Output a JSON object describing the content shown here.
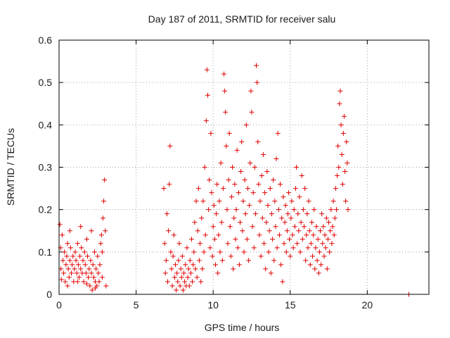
{
  "chart_data": {
    "type": "scatter",
    "title": "Day 187 of 2011, SRMTID for receiver salu",
    "xlabel": "GPS time / hours",
    "ylabel": "SRMTID / TECUs",
    "xlim": [
      0,
      24
    ],
    "ylim": [
      0,
      0.6
    ],
    "xticks": [
      "0",
      "5",
      "10",
      "15",
      "20"
    ],
    "xtick_values": [
      0,
      5,
      10,
      15,
      20
    ],
    "yticks": [
      "0",
      "0.1",
      "0.2",
      "0.3",
      "0.4",
      "0.5",
      "0.6"
    ],
    "ytick_values": [
      0,
      0.1,
      0.2,
      0.3,
      0.4,
      0.5,
      0.6
    ],
    "grid": true,
    "marker": "plus",
    "color": "#e00000",
    "series": [
      {
        "points": [
          [
            0.05,
            0.165
          ],
          [
            0.1,
            0.11
          ],
          [
            0.12,
            0.06
          ],
          [
            0.2,
            0.14
          ],
          [
            0.25,
            0.08
          ],
          [
            0.3,
            0.05
          ],
          [
            0.35,
            0.1
          ],
          [
            0.4,
            0.03
          ],
          [
            0.45,
            0.07
          ],
          [
            0.5,
            0.09
          ],
          [
            0.55,
            0.12
          ],
          [
            0.6,
            0.06
          ],
          [
            0.65,
            0.04
          ],
          [
            0.7,
            0.08
          ],
          [
            0.75,
            0.11
          ],
          [
            0.8,
            0.05
          ],
          [
            0.85,
            0.07
          ],
          [
            0.9,
            0.09
          ],
          [
            0.95,
            0.03
          ],
          [
            1.0,
            0.06
          ],
          [
            1.05,
            0.1
          ],
          [
            1.1,
            0.08
          ],
          [
            1.15,
            0.05
          ],
          [
            1.2,
            0.12
          ],
          [
            1.25,
            0.07
          ],
          [
            1.3,
            0.04
          ],
          [
            1.35,
            0.09
          ],
          [
            1.4,
            0.06
          ],
          [
            1.45,
            0.11
          ],
          [
            1.5,
            0.05
          ],
          [
            1.55,
            0.08
          ],
          [
            1.6,
            0.03
          ],
          [
            1.65,
            0.1
          ],
          [
            1.7,
            0.07
          ],
          [
            1.75,
            0.05
          ],
          [
            1.8,
            0.13
          ],
          [
            1.85,
            0.09
          ],
          [
            1.9,
            0.04
          ],
          [
            1.95,
            0.06
          ],
          [
            2.0,
            0.02
          ],
          [
            2.05,
            0.08
          ],
          [
            2.1,
            0.05
          ],
          [
            2.15,
            0.01
          ],
          [
            2.2,
            0.07
          ],
          [
            2.25,
            0.04
          ],
          [
            2.3,
            0.1
          ],
          [
            2.35,
            0.03
          ],
          [
            2.4,
            0.06
          ],
          [
            2.45,
            0.02
          ],
          [
            2.5,
            0.09
          ],
          [
            2.55,
            0.05
          ],
          [
            2.6,
            0.03
          ],
          [
            2.65,
            0.07
          ],
          [
            2.7,
            0.12
          ],
          [
            2.75,
            0.14
          ],
          [
            2.8,
            0.1
          ],
          [
            2.85,
            0.18
          ],
          [
            2.9,
            0.22
          ],
          [
            2.95,
            0.27
          ],
          [
            3.0,
            0.15
          ],
          [
            3.05,
            0.02
          ],
          [
            0.15,
            0.035
          ],
          [
            0.55,
            0.02
          ],
          [
            1.2,
            0.03
          ],
          [
            1.8,
            0.025
          ],
          [
            2.35,
            0.015
          ],
          [
            2.8,
            0.04
          ],
          [
            0.7,
            0.15
          ],
          [
            1.4,
            0.16
          ],
          [
            2.1,
            0.15
          ],
          [
            6.8,
            0.25
          ],
          [
            6.85,
            0.12
          ],
          [
            6.9,
            0.05
          ],
          [
            6.95,
            0.08
          ],
          [
            7.0,
            0.19
          ],
          [
            7.05,
            0.03
          ],
          [
            7.1,
            0.15
          ],
          [
            7.15,
            0.26
          ],
          [
            7.2,
            0.35
          ],
          [
            7.25,
            0.1
          ],
          [
            7.3,
            0.06
          ],
          [
            7.35,
            0.02
          ],
          [
            7.4,
            0.09
          ],
          [
            7.45,
            0.14
          ],
          [
            7.5,
            0.04
          ],
          [
            7.55,
            0.07
          ],
          [
            7.6,
            0.01
          ],
          [
            7.65,
            0.05
          ],
          [
            7.7,
            0.03
          ],
          [
            7.75,
            0.08
          ],
          [
            7.8,
            0.12
          ],
          [
            7.85,
            0.02
          ],
          [
            7.9,
            0.06
          ],
          [
            7.95,
            0.04
          ],
          [
            8.0,
            0.09
          ],
          [
            8.05,
            0.01
          ],
          [
            8.1,
            0.05
          ],
          [
            8.15,
            0.03
          ],
          [
            8.2,
            0.07
          ],
          [
            8.25,
            0.02
          ],
          [
            8.3,
            0.11
          ],
          [
            8.35,
            0.04
          ],
          [
            8.4,
            0.06
          ],
          [
            8.45,
            0.02
          ],
          [
            8.5,
            0.08
          ],
          [
            8.55,
            0.05
          ],
          [
            8.6,
            0.13
          ],
          [
            8.65,
            0.03
          ],
          [
            8.7,
            0.07
          ],
          [
            8.75,
            0.1
          ],
          [
            8.8,
            0.17
          ],
          [
            8.85,
            0.06
          ],
          [
            8.9,
            0.22
          ],
          [
            8.95,
            0.04
          ],
          [
            9.0,
            0.15
          ],
          [
            9.05,
            0.25
          ],
          [
            9.1,
            0.08
          ],
          [
            9.15,
            0.12
          ],
          [
            9.2,
            0.03
          ],
          [
            9.25,
            0.18
          ],
          [
            9.3,
            0.06
          ],
          [
            9.35,
            0.22
          ],
          [
            9.4,
            0.1
          ],
          [
            9.45,
            0.3
          ],
          [
            9.5,
            0.14
          ],
          [
            9.55,
            0.41
          ],
          [
            9.6,
            0.53
          ],
          [
            9.65,
            0.47
          ],
          [
            9.7,
            0.2
          ],
          [
            9.75,
            0.27
          ],
          [
            9.8,
            0.11
          ],
          [
            9.85,
            0.38
          ],
          [
            9.9,
            0.24
          ],
          [
            9.95,
            0.09
          ],
          [
            10.0,
            0.16
          ],
          [
            10.05,
            0.21
          ],
          [
            10.1,
            0.13
          ],
          [
            10.15,
            0.07
          ],
          [
            10.2,
            0.19
          ],
          [
            10.25,
            0.26
          ],
          [
            10.3,
            0.05
          ],
          [
            10.35,
            0.14
          ],
          [
            10.4,
            0.22
          ],
          [
            10.45,
            0.1
          ],
          [
            10.5,
            0.31
          ],
          [
            10.55,
            0.17
          ],
          [
            10.6,
            0.08
          ],
          [
            10.65,
            0.25
          ],
          [
            10.7,
            0.52
          ],
          [
            10.75,
            0.48
          ],
          [
            10.8,
            0.43
          ],
          [
            10.85,
            0.35
          ],
          [
            10.9,
            0.2
          ],
          [
            10.95,
            0.12
          ],
          [
            11.0,
            0.27
          ],
          [
            11.05,
            0.38
          ],
          [
            11.1,
            0.16
          ],
          [
            11.15,
            0.09
          ],
          [
            11.2,
            0.23
          ],
          [
            11.25,
            0.3
          ],
          [
            11.3,
            0.06
          ],
          [
            11.35,
            0.18
          ],
          [
            11.4,
            0.26
          ],
          [
            11.45,
            0.13
          ],
          [
            11.5,
            0.2
          ],
          [
            11.55,
            0.34
          ],
          [
            11.6,
            0.11
          ],
          [
            11.65,
            0.24
          ],
          [
            11.7,
            0.07
          ],
          [
            11.75,
            0.17
          ],
          [
            11.8,
            0.29
          ],
          [
            11.85,
            0.36
          ],
          [
            11.9,
            0.15
          ],
          [
            11.95,
            0.22
          ],
          [
            12.0,
            0.1
          ],
          [
            12.05,
            0.27
          ],
          [
            12.1,
            0.19
          ],
          [
            12.15,
            0.4
          ],
          [
            12.2,
            0.13
          ],
          [
            12.25,
            0.25
          ],
          [
            12.3,
            0.08
          ],
          [
            12.35,
            0.21
          ],
          [
            12.4,
            0.31
          ],
          [
            12.45,
            0.48
          ],
          [
            12.5,
            0.43
          ],
          [
            12.55,
            0.16
          ],
          [
            12.6,
            0.24
          ],
          [
            12.65,
            0.11
          ],
          [
            12.7,
            0.3
          ],
          [
            12.75,
            0.19
          ],
          [
            12.8,
            0.54
          ],
          [
            12.85,
            0.5
          ],
          [
            12.9,
            0.36
          ],
          [
            12.95,
            0.26
          ],
          [
            13.0,
            0.14
          ],
          [
            13.05,
            0.22
          ],
          [
            13.1,
            0.09
          ],
          [
            13.15,
            0.28
          ],
          [
            13.2,
            0.18
          ],
          [
            13.25,
            0.33
          ],
          [
            13.3,
            0.12
          ],
          [
            13.35,
            0.24
          ],
          [
            13.4,
            0.06
          ],
          [
            13.45,
            0.17
          ],
          [
            13.5,
            0.29
          ],
          [
            13.55,
            0.21
          ],
          [
            13.6,
            0.1
          ],
          [
            13.65,
            0.15
          ],
          [
            13.7,
            0.25
          ],
          [
            13.75,
            0.05
          ],
          [
            13.8,
            0.19
          ],
          [
            13.85,
            0.13
          ],
          [
            13.9,
            0.27
          ],
          [
            13.95,
            0.08
          ],
          [
            14.0,
            0.22
          ],
          [
            14.05,
            0.16
          ],
          [
            14.1,
            0.32
          ],
          [
            14.15,
            0.11
          ],
          [
            14.2,
            0.38
          ],
          [
            14.25,
            0.2
          ],
          [
            14.3,
            0.14
          ],
          [
            14.35,
            0.26
          ],
          [
            14.4,
            0.07
          ],
          [
            14.45,
            0.18
          ],
          [
            14.5,
            0.03
          ],
          [
            14.55,
            0.23
          ],
          [
            14.6,
            0.12
          ],
          [
            14.65,
            0.17
          ],
          [
            14.7,
            0.21
          ],
          [
            14.75,
            0.1
          ],
          [
            14.8,
            0.15
          ],
          [
            14.85,
            0.19
          ],
          [
            14.9,
            0.24
          ],
          [
            14.95,
            0.13
          ],
          [
            15.0,
            0.09
          ],
          [
            15.05,
            0.18
          ],
          [
            15.1,
            0.22
          ],
          [
            15.15,
            0.14
          ],
          [
            15.2,
            0.11
          ],
          [
            15.25,
            0.2
          ],
          [
            15.3,
            0.16
          ],
          [
            15.35,
            0.25
          ],
          [
            15.4,
            0.3
          ],
          [
            15.45,
            0.12
          ],
          [
            15.5,
            0.19
          ],
          [
            15.55,
            0.15
          ],
          [
            15.6,
            0.23
          ],
          [
            15.65,
            0.1
          ],
          [
            15.7,
            0.17
          ],
          [
            15.75,
            0.28
          ],
          [
            15.8,
            0.13
          ],
          [
            15.85,
            0.2
          ],
          [
            15.9,
            0.16
          ],
          [
            15.95,
            0.25
          ],
          [
            16.0,
            0.08
          ],
          [
            16.05,
            0.14
          ],
          [
            16.1,
            0.19
          ],
          [
            16.15,
            0.11
          ],
          [
            16.2,
            0.22
          ],
          [
            16.25,
            0.15
          ],
          [
            16.3,
            0.07
          ],
          [
            16.35,
            0.12
          ],
          [
            16.4,
            0.17
          ],
          [
            16.45,
            0.09
          ],
          [
            16.5,
            0.14
          ],
          [
            16.55,
            0.2
          ],
          [
            16.6,
            0.06
          ],
          [
            16.65,
            0.11
          ],
          [
            16.7,
            0.16
          ],
          [
            16.75,
            0.08
          ],
          [
            16.8,
            0.13
          ],
          [
            16.85,
            0.05
          ],
          [
            16.9,
            0.1
          ],
          [
            16.95,
            0.15
          ],
          [
            17.0,
            0.07
          ],
          [
            17.05,
            0.19
          ],
          [
            17.1,
            0.12
          ],
          [
            17.15,
            0.16
          ],
          [
            17.2,
            0.09
          ],
          [
            17.25,
            0.14
          ],
          [
            17.3,
            0.11
          ],
          [
            17.35,
            0.18
          ],
          [
            17.4,
            0.06
          ],
          [
            17.45,
            0.13
          ],
          [
            17.5,
            0.17
          ],
          [
            17.55,
            0.1
          ],
          [
            17.6,
            0.15
          ],
          [
            17.65,
            0.2
          ],
          [
            17.7,
            0.12
          ],
          [
            17.75,
            0.16
          ],
          [
            17.8,
            0.22
          ],
          [
            17.85,
            0.14
          ],
          [
            17.9,
            0.18
          ],
          [
            17.95,
            0.25
          ],
          [
            18.0,
            0.2
          ],
          [
            18.05,
            0.28
          ],
          [
            18.1,
            0.35
          ],
          [
            18.15,
            0.3
          ],
          [
            18.2,
            0.45
          ],
          [
            18.25,
            0.48
          ],
          [
            18.3,
            0.4
          ],
          [
            18.35,
            0.33
          ],
          [
            18.4,
            0.26
          ],
          [
            18.45,
            0.38
          ],
          [
            18.5,
            0.42
          ],
          [
            18.55,
            0.29
          ],
          [
            18.6,
            0.22
          ],
          [
            18.65,
            0.36
          ],
          [
            18.7,
            0.31
          ],
          [
            18.75,
            0.2
          ],
          [
            22.7,
            0.0
          ]
        ]
      }
    ]
  }
}
